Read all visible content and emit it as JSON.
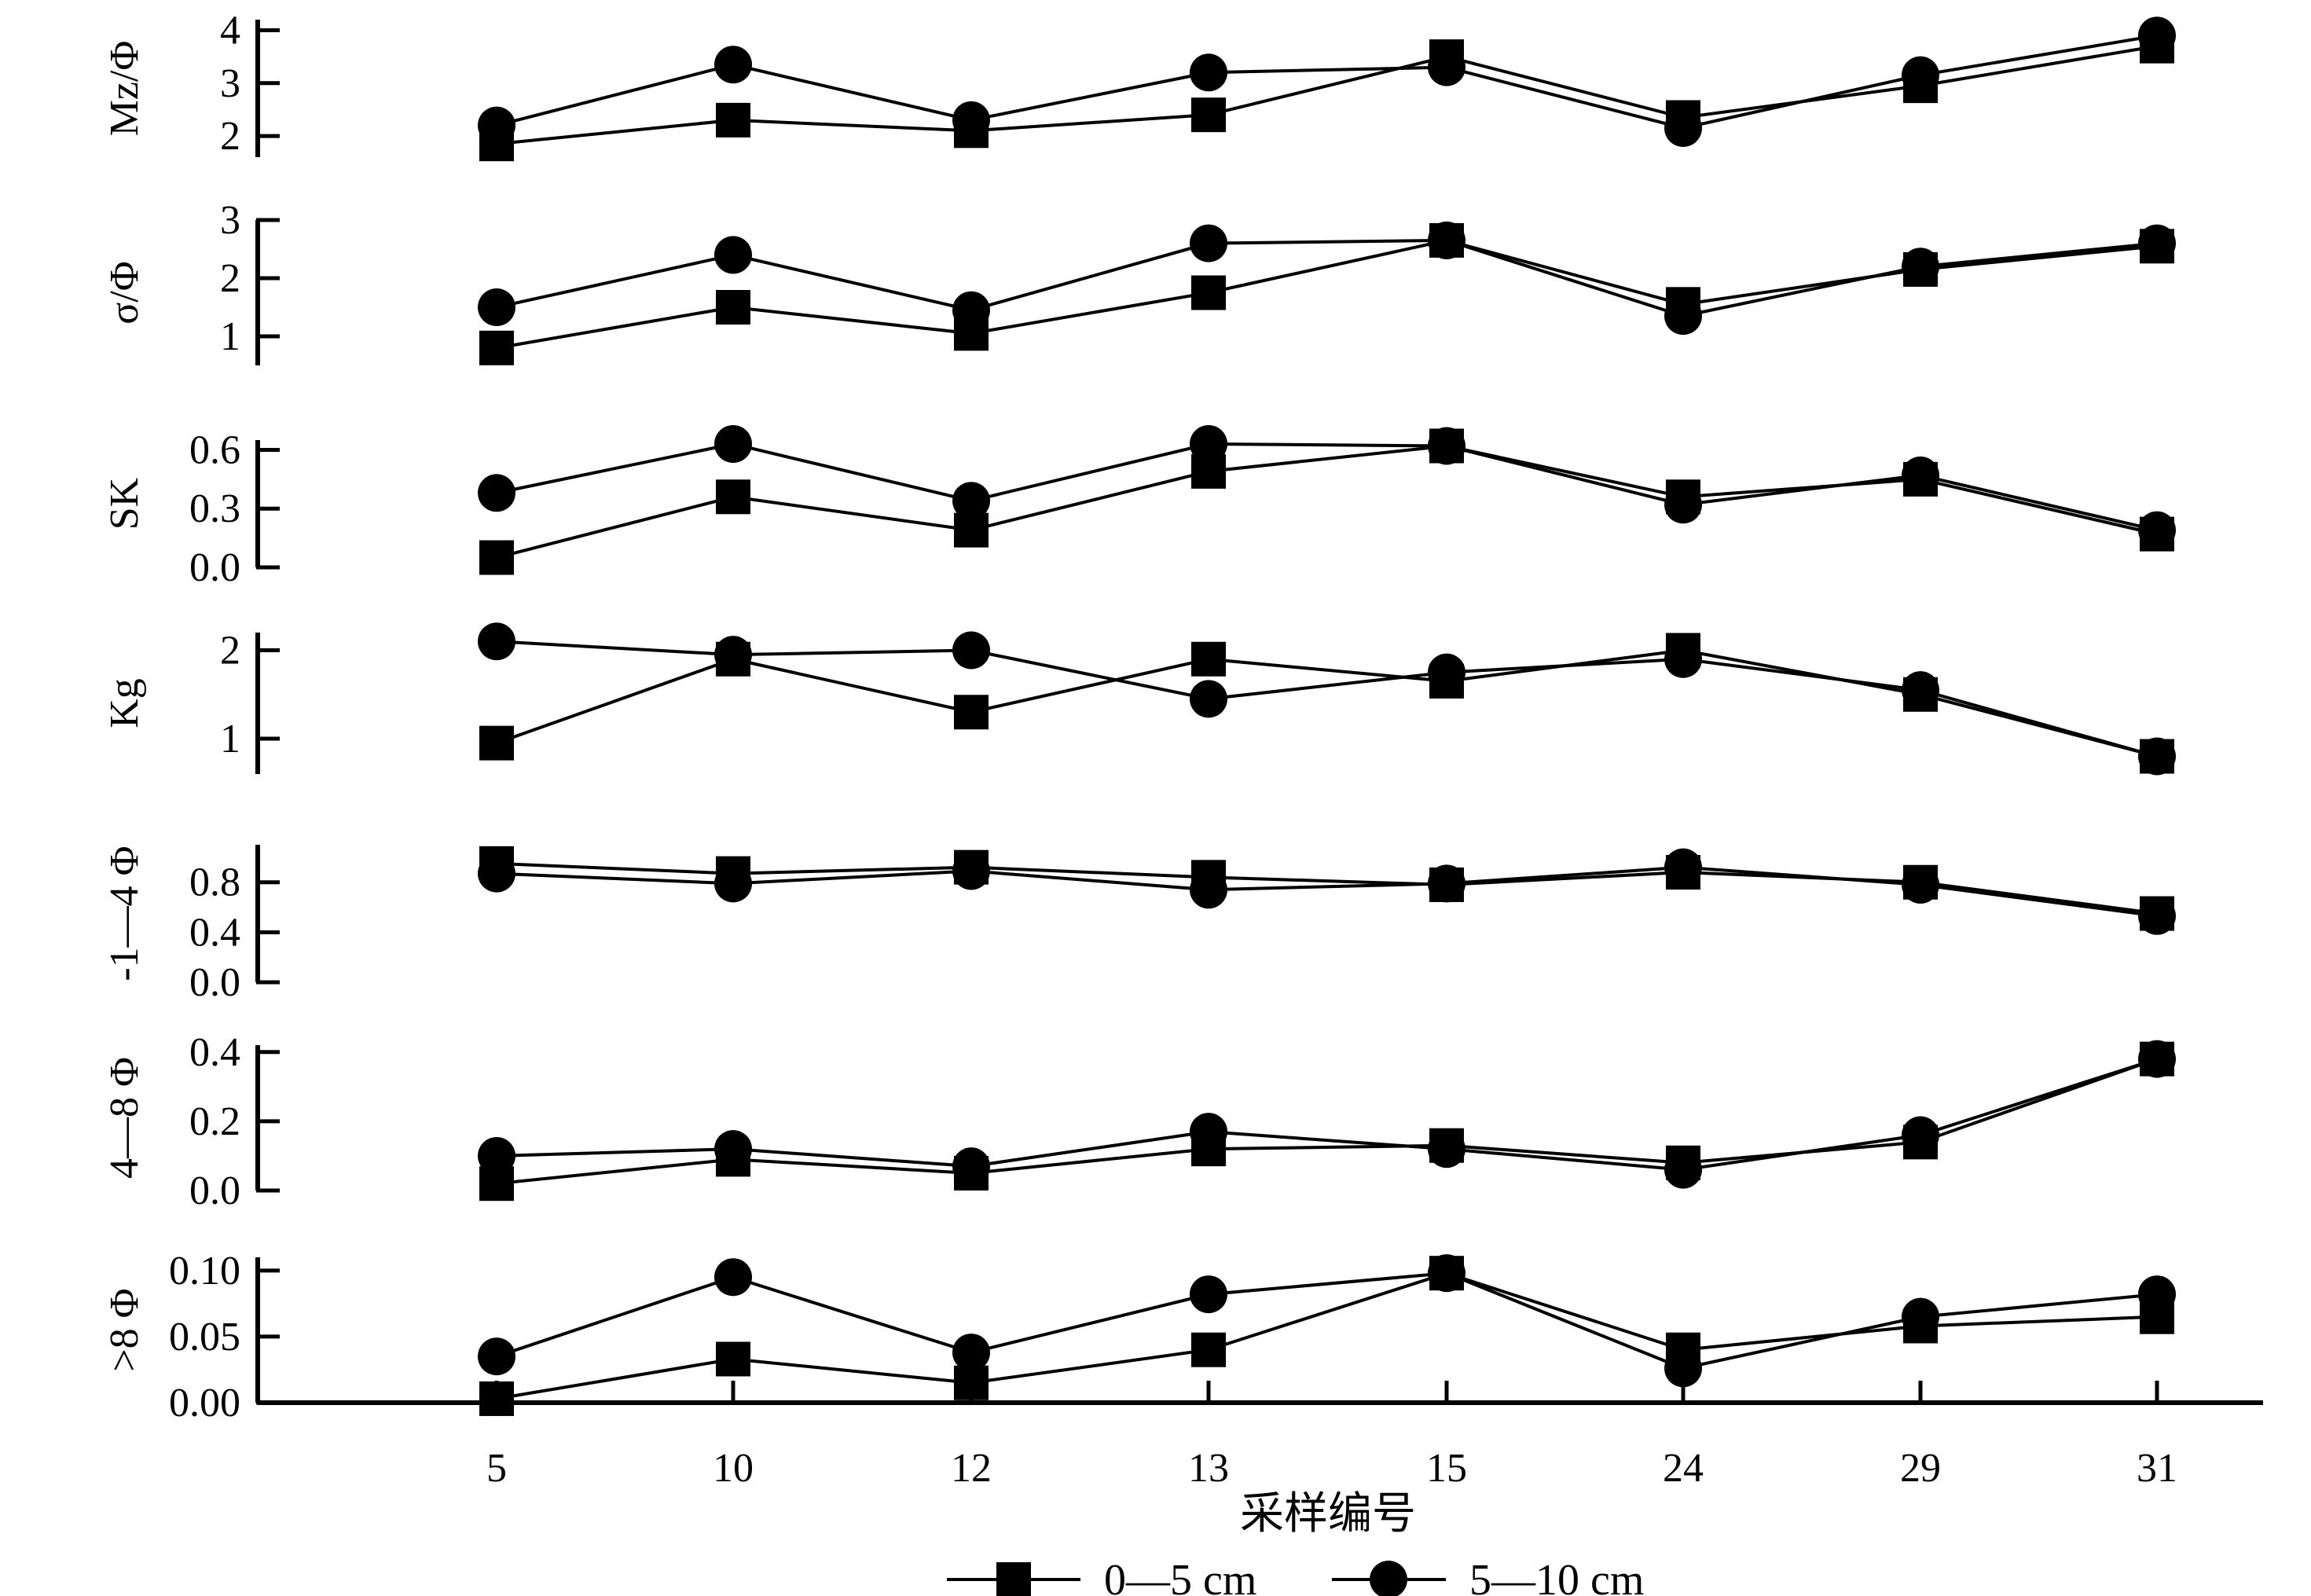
{
  "chart_data": {
    "type": "line",
    "categories": [
      "5",
      "10",
      "12",
      "13",
      "15",
      "24",
      "29",
      "31"
    ],
    "xlabel": "采样编号",
    "legend": {
      "placement": "bottom",
      "items": [
        "0—5 cm",
        "5—10 cm"
      ]
    },
    "grid": false,
    "panels": [
      {
        "ylabel": "Mz/Φ",
        "ylim": [
          1.6,
          4.2
        ],
        "yticks": [
          "2",
          "3",
          "4"
        ],
        "tickvals": [
          2,
          3,
          4
        ],
        "series": [
          {
            "name": "0—5 cm",
            "marker": "square",
            "values": [
              1.85,
              2.3,
              2.1,
              2.4,
              3.5,
              2.35,
              2.95,
              3.7
            ]
          },
          {
            "name": "5—10 cm",
            "marker": "circle",
            "values": [
              2.2,
              3.35,
              2.3,
              3.2,
              3.3,
              2.15,
              3.15,
              3.9
            ]
          }
        ]
      },
      {
        "ylabel": "σ/Φ",
        "ylim": [
          0.5,
          3.0
        ],
        "yticks": [
          "1",
          "2",
          "3"
        ],
        "tickvals": [
          1,
          2,
          3
        ],
        "series": [
          {
            "name": "0—5 cm",
            "marker": "square",
            "values": [
              0.8,
              1.5,
              1.05,
              1.75,
              2.65,
              1.55,
              2.15,
              2.55
            ]
          },
          {
            "name": "5—10 cm",
            "marker": "circle",
            "values": [
              1.5,
              2.4,
              1.45,
              2.6,
              2.65,
              1.35,
              2.2,
              2.6
            ]
          }
        ]
      },
      {
        "ylabel": "SK",
        "ylim": [
          0.0,
          0.65
        ],
        "yticks": [
          "0.0",
          "0.3",
          "0.6"
        ],
        "tickvals": [
          0.0,
          0.3,
          0.6
        ],
        "series": [
          {
            "name": "0—5 cm",
            "marker": "square",
            "values": [
              0.05,
              0.36,
              0.19,
              0.49,
              0.62,
              0.36,
              0.45,
              0.17
            ]
          },
          {
            "name": "5—10 cm",
            "marker": "circle",
            "values": [
              0.38,
              0.63,
              0.34,
              0.63,
              0.62,
              0.32,
              0.47,
              0.19
            ]
          }
        ]
      },
      {
        "ylabel": "Kg",
        "ylim": [
          0.6,
          2.2
        ],
        "yticks": [
          "1",
          "2"
        ],
        "tickvals": [
          1,
          2
        ],
        "series": [
          {
            "name": "0—5 cm",
            "marker": "square",
            "values": [
              0.95,
              1.9,
              1.3,
              1.9,
              1.65,
              2.0,
              1.5,
              0.8
            ]
          },
          {
            "name": "5—10 cm",
            "marker": "circle",
            "values": [
              2.1,
              1.95,
              2.0,
              1.45,
              1.75,
              1.9,
              1.55,
              0.8
            ]
          }
        ]
      },
      {
        "ylabel": "-1—4 Φ",
        "ylim": [
          0.0,
          1.1
        ],
        "yticks": [
          "0.0",
          "0.4",
          "0.8"
        ],
        "tickvals": [
          0.0,
          0.4,
          0.8
        ],
        "series": [
          {
            "name": "0—5 cm",
            "marker": "square",
            "values": [
              0.95,
              0.87,
              0.92,
              0.84,
              0.78,
              0.88,
              0.8,
              0.55
            ]
          },
          {
            "name": "5—10 cm",
            "marker": "circle",
            "values": [
              0.87,
              0.79,
              0.89,
              0.74,
              0.79,
              0.92,
              0.78,
              0.53
            ]
          }
        ]
      },
      {
        "ylabel": "4—8 Φ",
        "ylim": [
          0.0,
          0.42
        ],
        "yticks": [
          "0.0",
          "0.2",
          "0.4"
        ],
        "tickvals": [
          0.0,
          0.2,
          0.4
        ],
        "series": [
          {
            "name": "0—5 cm",
            "marker": "square",
            "values": [
              0.02,
              0.09,
              0.05,
              0.12,
              0.13,
              0.08,
              0.14,
              0.38
            ]
          },
          {
            "name": "5—10 cm",
            "marker": "circle",
            "values": [
              0.1,
              0.12,
              0.07,
              0.17,
              0.12,
              0.06,
              0.16,
              0.38
            ]
          }
        ]
      },
      {
        "ylabel": ">8 Φ",
        "ylim": [
          0.0,
          0.11
        ],
        "yticks": [
          "0.00",
          "0.05",
          "0.10"
        ],
        "tickvals": [
          0.0,
          0.05,
          0.1
        ],
        "series": [
          {
            "name": "0—5 cm",
            "marker": "square",
            "values": [
              0.003,
              0.033,
              0.015,
              0.04,
              0.098,
              0.04,
              0.058,
              0.065
            ]
          },
          {
            "name": "5—10 cm",
            "marker": "circle",
            "values": [
              0.035,
              0.095,
              0.038,
              0.082,
              0.098,
              0.026,
              0.065,
              0.082
            ]
          }
        ]
      }
    ]
  }
}
